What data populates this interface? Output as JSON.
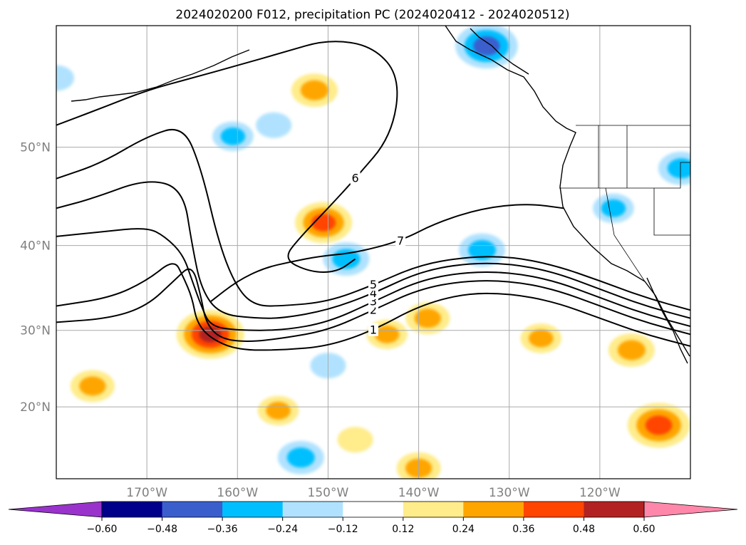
{
  "chart_data": {
    "type": "heatmap",
    "title": "2024020200 F012, precipitation PC (2024020412 - 2024020512)",
    "projection": "Mercator (approx.)",
    "xlim": [
      -180,
      -110
    ],
    "ylim": [
      10,
      60
    ],
    "x_ticks": [
      {
        "value": -170,
        "label": "170°W"
      },
      {
        "value": -160,
        "label": "160°W"
      },
      {
        "value": -150,
        "label": "150°W"
      },
      {
        "value": -140,
        "label": "140°W"
      },
      {
        "value": -130,
        "label": "130°W"
      },
      {
        "value": -120,
        "label": "120°W"
      }
    ],
    "y_ticks": [
      {
        "value": 20,
        "label": "20°N"
      },
      {
        "value": 30,
        "label": "30°N"
      },
      {
        "value": 40,
        "label": "40°N"
      },
      {
        "value": 50,
        "label": "50°N"
      }
    ],
    "grid": true,
    "colorbar": {
      "orientation": "horizontal",
      "extend": "both",
      "levels": [
        -0.6,
        -0.48,
        -0.36,
        -0.24,
        -0.12,
        0.12,
        0.24,
        0.36,
        0.48,
        0.6
      ],
      "tick_labels": [
        "−0.60",
        "−0.48",
        "−0.36",
        "−0.24",
        "−0.12",
        "0.12",
        "0.24",
        "0.36",
        "0.48",
        "0.60"
      ],
      "colors": [
        "#9933cc",
        "#00008b",
        "#3a5fcd",
        "#00bfff",
        "#b0e2ff",
        "#ffffff",
        "#ffec8b",
        "#ffa500",
        "#ff4500",
        "#b22222",
        "#ff88aa"
      ]
    },
    "shaded_regions": [
      {
        "lon": -150.5,
        "lat": 42.5,
        "value": 0.4
      },
      {
        "lon": -163.0,
        "lat": 29.5,
        "value": 0.5
      },
      {
        "lon": -151.5,
        "lat": 55.0,
        "value": 0.3
      },
      {
        "lon": -176.0,
        "lat": 22.8,
        "value": 0.28
      },
      {
        "lon": -139.0,
        "lat": 31.5,
        "value": 0.28
      },
      {
        "lon": -116.5,
        "lat": 27.5,
        "value": 0.3
      },
      {
        "lon": -113.5,
        "lat": 17.5,
        "value": 0.45
      },
      {
        "lon": -140.0,
        "lat": 11.5,
        "value": 0.28
      },
      {
        "lon": -155.5,
        "lat": 19.5,
        "value": 0.25
      },
      {
        "lon": -143.5,
        "lat": 29.5,
        "value": 0.25
      },
      {
        "lon": -147.0,
        "lat": 15.5,
        "value": 0.2
      },
      {
        "lon": -126.5,
        "lat": 29.0,
        "value": 0.25
      },
      {
        "lon": -148.0,
        "lat": 38.5,
        "value": -0.3
      },
      {
        "lon": -133.0,
        "lat": 39.5,
        "value": -0.3
      },
      {
        "lon": -132.5,
        "lat": 58.5,
        "value": -0.45
      },
      {
        "lon": -111.0,
        "lat": 48.0,
        "value": -0.3
      },
      {
        "lon": -118.5,
        "lat": 44.0,
        "value": -0.25
      },
      {
        "lon": -160.5,
        "lat": 51.0,
        "value": -0.25
      },
      {
        "lon": -153.0,
        "lat": 13.0,
        "value": -0.3
      },
      {
        "lon": -150.0,
        "lat": 25.5,
        "value": -0.2
      },
      {
        "lon": -156.0,
        "lat": 52.0,
        "value": -0.2
      },
      {
        "lon": -180.0,
        "lat": 56.0,
        "value": -0.2
      }
    ],
    "contours": [
      {
        "label": "1",
        "points": [
          [
            -180,
            33
          ],
          [
            -174,
            34
          ],
          [
            -170,
            36
          ],
          [
            -167,
            38.5
          ],
          [
            -166,
            36.5
          ],
          [
            -165,
            34
          ],
          [
            -164.5,
            31
          ],
          [
            -163,
            29
          ],
          [
            -160,
            27.5
          ],
          [
            -155,
            27.5
          ],
          [
            -150,
            28
          ],
          [
            -145,
            30
          ],
          [
            -140,
            33
          ],
          [
            -135,
            34.5
          ],
          [
            -130,
            34.5
          ],
          [
            -125,
            33.5
          ],
          [
            -120,
            31.5
          ],
          [
            -115,
            29.5
          ],
          [
            -110,
            28
          ]
        ]
      },
      {
        "label": "2",
        "points": [
          [
            -180,
            31
          ],
          [
            -174,
            31.5
          ],
          [
            -170,
            33
          ],
          [
            -167,
            36
          ],
          [
            -165,
            38
          ],
          [
            -164,
            34
          ],
          [
            -163.5,
            31
          ],
          [
            -162,
            29
          ],
          [
            -159,
            28.5
          ],
          [
            -155,
            29
          ],
          [
            -150,
            30
          ],
          [
            -145,
            32.5
          ],
          [
            -140,
            35
          ],
          [
            -135,
            36
          ],
          [
            -130,
            36
          ],
          [
            -125,
            35
          ],
          [
            -120,
            33
          ],
          [
            -115,
            31
          ],
          [
            -110,
            29.5
          ]
        ]
      },
      {
        "label": "3",
        "points": [
          [
            -180,
            41
          ],
          [
            -175,
            41.5
          ],
          [
            -170,
            42
          ],
          [
            -168,
            41
          ],
          [
            -166,
            39
          ],
          [
            -165,
            36
          ],
          [
            -164,
            33
          ],
          [
            -163,
            30.5
          ],
          [
            -160,
            30
          ],
          [
            -155,
            30
          ],
          [
            -150,
            31
          ],
          [
            -145,
            33.5
          ],
          [
            -140,
            36
          ],
          [
            -135,
            37
          ],
          [
            -130,
            37
          ],
          [
            -125,
            36
          ],
          [
            -120,
            34
          ],
          [
            -115,
            32
          ],
          [
            -110,
            30.5
          ]
        ]
      },
      {
        "label": "4",
        "points": [
          [
            -180,
            44
          ],
          [
            -176,
            45
          ],
          [
            -170,
            47
          ],
          [
            -166,
            46
          ],
          [
            -165,
            40
          ],
          [
            -164,
            35
          ],
          [
            -162,
            32
          ],
          [
            -158,
            31.5
          ],
          [
            -155,
            31.5
          ],
          [
            -150,
            32.5
          ],
          [
            -145,
            34.5
          ],
          [
            -140,
            37
          ],
          [
            -135,
            38
          ],
          [
            -130,
            38
          ],
          [
            -125,
            37
          ],
          [
            -120,
            35
          ],
          [
            -115,
            33
          ],
          [
            -110,
            31.5
          ]
        ]
      },
      {
        "label": "5",
        "points": [
          [
            -180,
            47
          ],
          [
            -175,
            48.5
          ],
          [
            -170,
            51
          ],
          [
            -166,
            52
          ],
          [
            -164,
            48
          ],
          [
            -162,
            40
          ],
          [
            -160,
            35
          ],
          [
            -158,
            33
          ],
          [
            -155,
            33
          ],
          [
            -150,
            33.5
          ],
          [
            -145,
            35.5
          ],
          [
            -140,
            37.8
          ],
          [
            -135,
            38.7
          ],
          [
            -130,
            38.8
          ],
          [
            -125,
            37.8
          ],
          [
            -120,
            36
          ],
          [
            -115,
            34
          ],
          [
            -110,
            32.5
          ]
        ]
      },
      {
        "label": "6",
        "points": [
          [
            -180,
            52
          ],
          [
            -175,
            53.5
          ],
          [
            -170,
            55
          ],
          [
            -165,
            56
          ],
          [
            -160,
            57
          ],
          [
            -155,
            58
          ],
          [
            -150,
            59
          ],
          [
            -145,
            58.5
          ],
          [
            -142,
            56
          ],
          [
            -143,
            51
          ],
          [
            -147,
            47
          ],
          [
            -150,
            44
          ],
          [
            -153,
            41
          ],
          [
            -155,
            38.5
          ],
          [
            -152,
            37
          ],
          [
            -149,
            37
          ],
          [
            -147,
            38.5
          ]
        ]
      },
      {
        "label": "7",
        "points": [
          [
            -163,
            33.5
          ],
          [
            -160,
            36
          ],
          [
            -157,
            37.5
          ],
          [
            -154,
            38.2
          ],
          [
            -151,
            38.8
          ],
          [
            -147,
            39.2
          ],
          [
            -142,
            40.5
          ],
          [
            -138,
            42.5
          ],
          [
            -133,
            44
          ],
          [
            -128,
            44.5
          ],
          [
            -124,
            44
          ]
        ]
      }
    ]
  }
}
